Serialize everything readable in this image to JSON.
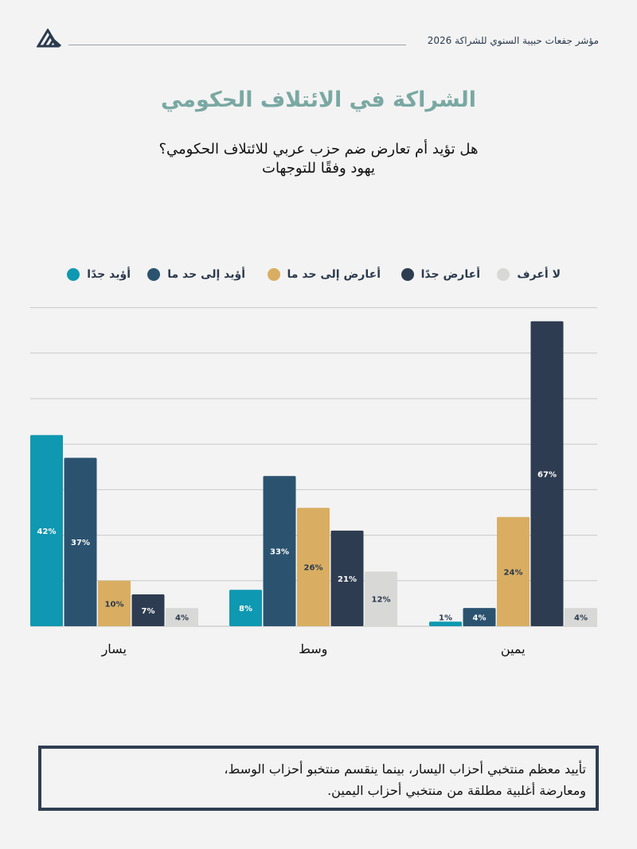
{
  "header": {
    "text": "مؤشر جفعات حبيبة السنوي للشراكة 2026",
    "logo_icon": "triangle-logo-icon"
  },
  "title": "الشراكة في الائتلاف الحكومي",
  "question": {
    "line1": "هل تؤيد أم تعارض ضم حزب عربي للائتلاف الحكومي؟",
    "line2": "يهود وفقًا للتوجهات"
  },
  "chart_data": {
    "type": "bar",
    "title": "الشراكة في الائتلاف الحكومي",
    "xlabel": "",
    "ylabel": "",
    "ylim": [
      0,
      70
    ],
    "grid": true,
    "legend_position": "top",
    "categories": [
      "يسار",
      "وسط",
      "يمين"
    ],
    "series": [
      {
        "name": "أؤيد جدًا",
        "color": "#0f98b1",
        "values": [
          42,
          8,
          1
        ],
        "labels": [
          "42%",
          "8%",
          "1%"
        ]
      },
      {
        "name": "أؤيد إلى حد ما",
        "color": "#2b5370",
        "values": [
          37,
          33,
          4
        ],
        "labels": [
          "37%",
          "33%",
          "4%"
        ]
      },
      {
        "name": "أعارض إلى حد ما",
        "color": "#d9ae62",
        "values": [
          10,
          26,
          24
        ],
        "labels": [
          "10%",
          "26%",
          "24%"
        ]
      },
      {
        "name": "أعارض جدًا",
        "color": "#2e3c51",
        "values": [
          7,
          21,
          67
        ],
        "labels": [
          "7%",
          "21%",
          "67%"
        ]
      },
      {
        "name": "لا أعرف",
        "color": "#d8d8d6",
        "values": [
          4,
          12,
          4
        ],
        "labels": [
          "4%",
          "12%",
          "4%"
        ]
      }
    ]
  },
  "note": {
    "line1": "تأييد معظم منتخبي أحزاب اليسار، بينما ينقسم منتخبو أحزاب الوسط،",
    "line2": "ومعارضة أغلبية مطلقة من منتخبي أحزاب اليمين."
  }
}
